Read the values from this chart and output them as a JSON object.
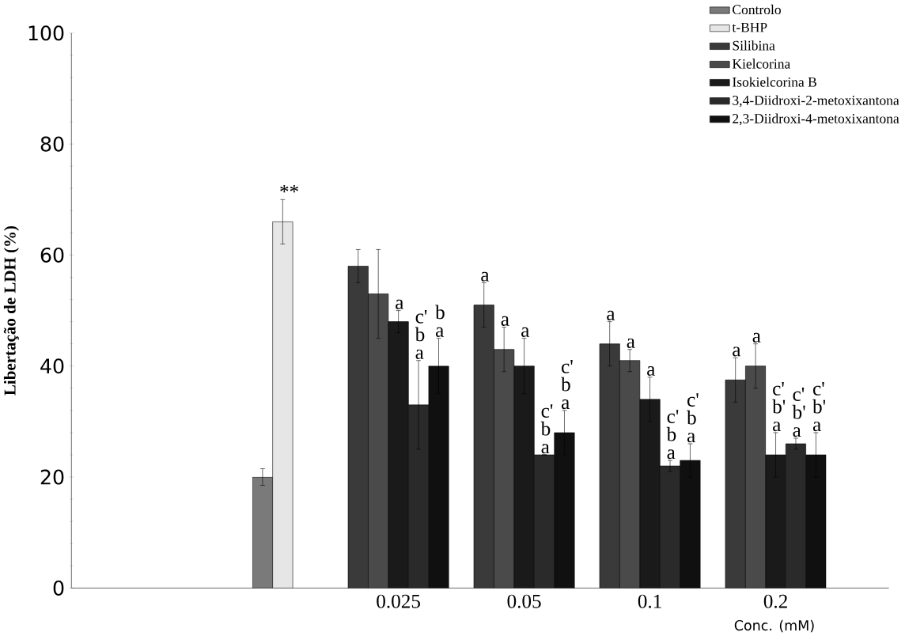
{
  "chart_data": {
    "type": "bar",
    "xlabel": "Conc. (mM)",
    "ylabel": "Libertação de LDH (%)",
    "categories": [
      null,
      "0.025",
      "0.05",
      "0.1",
      "0.2"
    ],
    "series": [
      {
        "name": "Controlo",
        "color": "#7a7a7a",
        "values": [
          20,
          null,
          null,
          null,
          null
        ],
        "errors": [
          1.5,
          null,
          null,
          null,
          null
        ]
      },
      {
        "name": "t-BHP",
        "color": "#e6e6e6",
        "values": [
          66,
          null,
          null,
          null,
          null
        ],
        "errors": [
          4,
          null,
          null,
          null,
          null
        ],
        "value_labels": [
          "**",
          null,
          null,
          null,
          null
        ]
      },
      {
        "name": "Silibina",
        "color": "#3a3a3a",
        "values": [
          null,
          58,
          51,
          44,
          37.5
        ],
        "errors": [
          null,
          3,
          4,
          4,
          4
        ],
        "value_labels": [
          null,
          null,
          "a",
          "a",
          "a"
        ]
      },
      {
        "name": "Kielcorina",
        "color": "#4a4a4a",
        "values": [
          null,
          53,
          43,
          41,
          40
        ],
        "errors": [
          null,
          8,
          4,
          2,
          4
        ],
        "value_labels": [
          null,
          null,
          "a",
          "a",
          "a"
        ]
      },
      {
        "name": "Isokielcorina B",
        "color": "#1a1a1a",
        "values": [
          null,
          48,
          40,
          34,
          24
        ],
        "errors": [
          null,
          2,
          5,
          4,
          4
        ],
        "value_labels": [
          null,
          "a",
          "a",
          "a",
          "c' b' a"
        ]
      },
      {
        "name": "3,4-Diidroxi-2-metoxixantona",
        "color": "#2a2a2a",
        "values": [
          null,
          33,
          24,
          22,
          26
        ],
        "errors": [
          null,
          8,
          null,
          1,
          1
        ],
        "value_labels": [
          null,
          "c' b a",
          "c' b a",
          "c' b a",
          "c' b' a"
        ]
      },
      {
        "name": "2,3-Diidroxi-4-metoxixantona",
        "color": "#101010",
        "values": [
          null,
          40,
          28,
          23,
          24
        ],
        "errors": [
          null,
          5,
          4,
          3,
          4
        ],
        "value_labels": [
          null,
          "b a",
          "c' b a",
          "c' b a",
          "c' b' a"
        ]
      }
    ],
    "ylim": [
      0,
      100
    ],
    "yticks": [
      0,
      20,
      40,
      60,
      80,
      100
    ],
    "legend": "top right"
  }
}
